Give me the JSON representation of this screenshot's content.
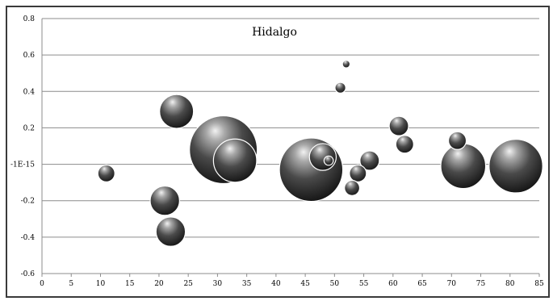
{
  "chart_data": {
    "type": "bubble",
    "title": "Hidalgo",
    "xlabel": "",
    "ylabel": "",
    "xlim": [
      0,
      85
    ],
    "ylim": [
      -0.6,
      0.8
    ],
    "grid": true,
    "legend": "none",
    "x_ticks": [
      0,
      5,
      10,
      15,
      20,
      25,
      30,
      35,
      40,
      45,
      50,
      55,
      60,
      65,
      70,
      75,
      80,
      85
    ],
    "y_ticks": [
      0.8,
      0.6,
      0.4,
      0.2,
      0,
      -0.2,
      -0.4,
      -0.6
    ],
    "y_tick_labels": [
      "0.8",
      "0.6",
      "0.4",
      "0.2",
      "-1E-15",
      "-0.2",
      "-0.4",
      "-0.6"
    ],
    "colors": {
      "bubble_dark": "#0d0d0d",
      "bubble_mid": "#6e6e6e",
      "bubble_highlight": "#f2f2f2",
      "grid": "#8c8c8c"
    },
    "points": [
      {
        "x": 11,
        "y": -0.05,
        "size": 1.0
      },
      {
        "x": 21,
        "y": -0.2,
        "size": 3.0
      },
      {
        "x": 22,
        "y": -0.37,
        "size": 3.0
      },
      {
        "x": 23,
        "y": 0.29,
        "size": 4.0
      },
      {
        "x": 31,
        "y": 0.08,
        "size": 16.0
      },
      {
        "x": 33,
        "y": 0.02,
        "size": 6.5
      },
      {
        "x": 46,
        "y": -0.03,
        "size": 14.0
      },
      {
        "x": 48,
        "y": 0.04,
        "size": 2.5
      },
      {
        "x": 49,
        "y": 0.02,
        "size": 0.3
      },
      {
        "x": 51,
        "y": 0.42,
        "size": 0.4
      },
      {
        "x": 52,
        "y": 0.55,
        "size": 0.2
      },
      {
        "x": 53,
        "y": -0.13,
        "size": 0.8
      },
      {
        "x": 54,
        "y": -0.05,
        "size": 1.0
      },
      {
        "x": 56,
        "y": 0.02,
        "size": 1.3
      },
      {
        "x": 61,
        "y": 0.21,
        "size": 1.3
      },
      {
        "x": 62,
        "y": 0.11,
        "size": 1.1
      },
      {
        "x": 71,
        "y": 0.13,
        "size": 1.1
      },
      {
        "x": 72,
        "y": -0.01,
        "size": 7.0
      },
      {
        "x": 81,
        "y": -0.01,
        "size": 10.0
      }
    ]
  }
}
